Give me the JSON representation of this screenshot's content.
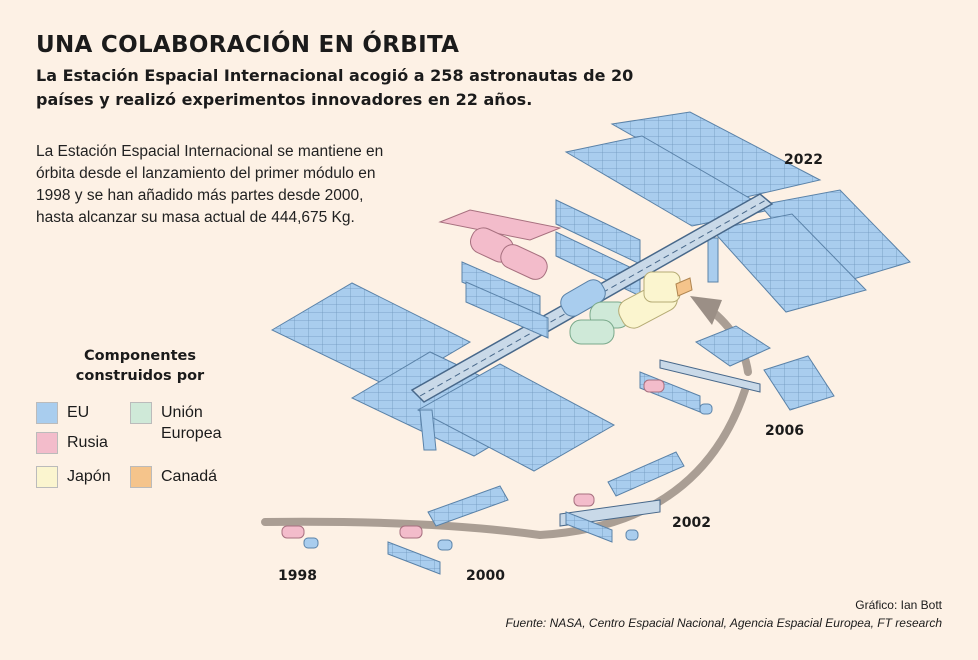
{
  "header": {
    "title": "UNA COLABORACIÓN EN ÓRBITA",
    "subtitle": "La Estación Espacial Internacional acogió a 258 astronautas de 20 países y realizó experimentos innovadores en 22 años."
  },
  "intro": "La Estación Espacial Internacional se mantiene en órbita desde el lanzamiento del primer módulo en 1998 y se han añadido más partes desde 2000, hasta alcanzar su masa actual de 444,675 Kg.",
  "legend": {
    "title": "Componentes construidos por",
    "items": [
      {
        "label": "EU",
        "color": "#a9cdee"
      },
      {
        "label": "Rusia",
        "color": "#f3bccb"
      },
      {
        "label": "Japón",
        "color": "#fbf5cf"
      },
      {
        "label": "Unión Europea",
        "color": "#cfe9d8"
      },
      {
        "label": "Canadá",
        "color": "#f5c48b"
      }
    ]
  },
  "stages": [
    {
      "year": "1998"
    },
    {
      "year": "2000"
    },
    {
      "year": "2002"
    },
    {
      "year": "2006"
    },
    {
      "year": "2022"
    }
  ],
  "credits": {
    "graphic": "Gráfico: Ian Bott",
    "source": "Fuente: NASA, Centro Espacial Nacional, Agencia Espacial Europea, FT research"
  }
}
